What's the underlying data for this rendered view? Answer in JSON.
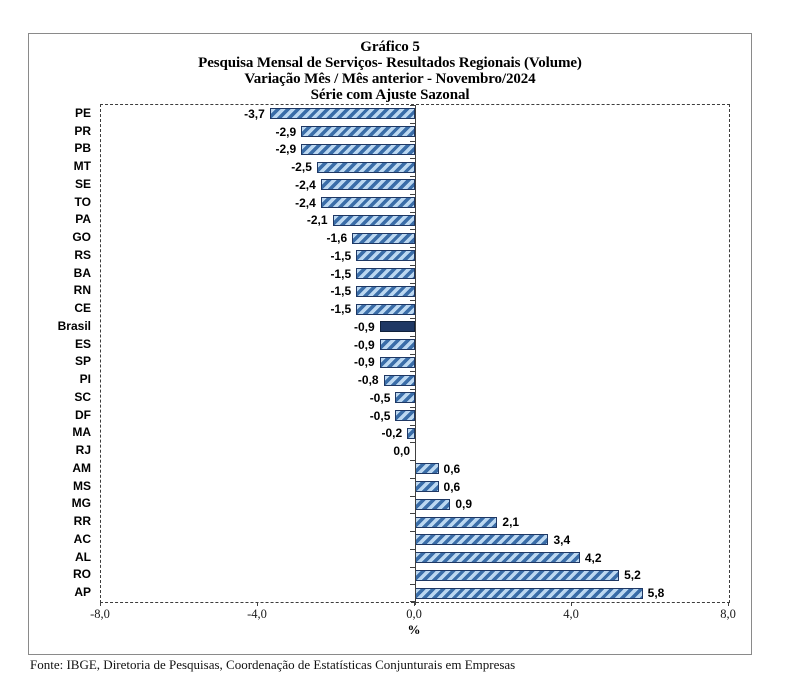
{
  "header": {
    "title_line1": "Gráfico 5",
    "title_line2": "Pesquisa Mensal de Serviços- Resultados Regionais (Volume)",
    "title_line3": "Variação Mês / Mês anterior - Novembro/2024",
    "title_line4": "Série com Ajuste Sazonal"
  },
  "footer": {
    "source": "Fonte: IBGE, Diretoria de Pesquisas, Coordenação de Estatísticas Conjunturais em Empresas"
  },
  "chart_data": {
    "type": "bar",
    "orientation": "horizontal",
    "title": "Gráfico 5 — Pesquisa Mensal de Serviços - Resultados Regionais (Volume) — Variação Mês / Mês anterior - Novembro/2024 — Série com Ajuste Sazonal",
    "categories": [
      "PE",
      "PR",
      "PB",
      "MT",
      "SE",
      "TO",
      "PA",
      "GO",
      "RS",
      "BA",
      "RN",
      "CE",
      "Brasil",
      "ES",
      "SP",
      "PI",
      "SC",
      "DF",
      "MA",
      "RJ",
      "AM",
      "MS",
      "MG",
      "RR",
      "AC",
      "AL",
      "RO",
      "AP"
    ],
    "values": [
      -3.7,
      -2.9,
      -2.9,
      -2.5,
      -2.4,
      -2.4,
      -2.1,
      -1.6,
      -1.5,
      -1.5,
      -1.5,
      -1.5,
      -0.9,
      -0.9,
      -0.9,
      -0.8,
      -0.5,
      -0.5,
      -0.2,
      0.0,
      0.6,
      0.6,
      0.9,
      2.1,
      3.4,
      4.2,
      5.2,
      5.8
    ],
    "value_labels": [
      "-3,7",
      "-2,9",
      "-2,9",
      "-2,5",
      "-2,4",
      "-2,4",
      "-2,1",
      "-1,6",
      "-1,5",
      "-1,5",
      "-1,5",
      "-1,5",
      "-0,9",
      "-0,9",
      "-0,9",
      "-0,8",
      "-0,5",
      "-0,5",
      "-0,2",
      "0,0",
      "0,6",
      "0,6",
      "0,9",
      "2,1",
      "3,4",
      "4,2",
      "5,2",
      "5,8"
    ],
    "highlight_category": "Brasil",
    "xlabel": "%",
    "xlim": [
      -8.0,
      8.0
    ],
    "x_ticks": [
      "-8,0",
      "-4,0",
      "0,0",
      "4,0",
      "8,0"
    ],
    "grid": false,
    "legend": false,
    "colors": {
      "bar_fill": "#bcd8f1",
      "bar_stripe": "#3a6da8",
      "bar_border": "#1f3864",
      "highlight_fill": "#1f3864",
      "highlight_border": "#10213c",
      "axis": "#404040"
    }
  }
}
